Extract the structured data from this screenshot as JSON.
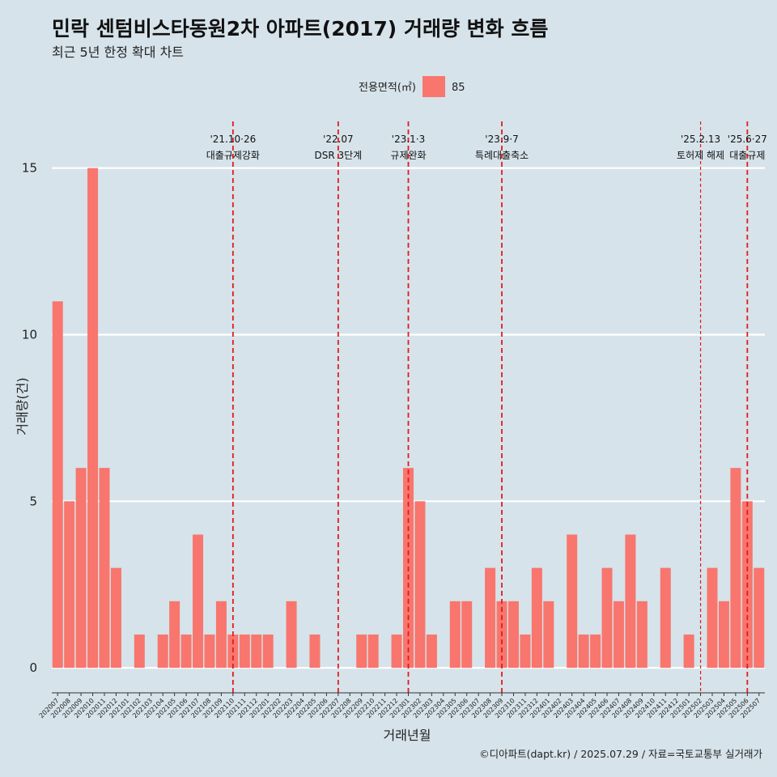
{
  "title": "민락 센텀비스타동원2차 아파트(2017) 거래량 변화 흐름",
  "subtitle": "최근 5년 한정 확대 차트",
  "caption": "©디아파트(dapt.kr) / 2025.07.29 / 자료=국토교통부 실거래가",
  "colors": {
    "background": "#d6e3ea",
    "bar": "#f8766d",
    "event_line": "#e41a1c",
    "grid": "#ffffff"
  },
  "chart_data": {
    "type": "bar",
    "xlabel": "거래년월",
    "ylabel": "거래량(건)",
    "legend": {
      "title": "전용면적(㎡)",
      "position": "top",
      "entries": [
        "85"
      ]
    },
    "ylim": [
      -0.75,
      16.4
    ],
    "yticks": [
      0,
      5,
      10,
      15
    ],
    "grid": true,
    "categories": [
      "202007",
      "202008",
      "202009",
      "202010",
      "202011",
      "202012",
      "202101",
      "202102",
      "202103",
      "202104",
      "202105",
      "202106",
      "202107",
      "202108",
      "202109",
      "202110",
      "202111",
      "202112",
      "202201",
      "202202",
      "202203",
      "202204",
      "202205",
      "202206",
      "202207",
      "202208",
      "202209",
      "202210",
      "202211",
      "202212",
      "202301",
      "202302",
      "202303",
      "202304",
      "202305",
      "202306",
      "202307",
      "202308",
      "202309",
      "202310",
      "202311",
      "202312",
      "202401",
      "202402",
      "202403",
      "202404",
      "202405",
      "202406",
      "202407",
      "202408",
      "202409",
      "202410",
      "202411",
      "202412",
      "202501",
      "202502",
      "202503",
      "202504",
      "202505",
      "202506",
      "202507"
    ],
    "series": [
      {
        "name": "85",
        "values": [
          11,
          5,
          6,
          15,
          6,
          3,
          0,
          1,
          0,
          1,
          2,
          1,
          4,
          1,
          2,
          1,
          1,
          1,
          1,
          0,
          2,
          0,
          1,
          0,
          0,
          0,
          1,
          1,
          0,
          1,
          6,
          5,
          1,
          0,
          2,
          2,
          0,
          3,
          2,
          2,
          1,
          3,
          2,
          0,
          4,
          1,
          1,
          3,
          2,
          4,
          2,
          0,
          3,
          0,
          1,
          0,
          3,
          2,
          6,
          5,
          3
        ]
      }
    ],
    "events": [
      {
        "date": "'21.10·26",
        "label": "대출규제강화",
        "at": "202110",
        "offset": 0.0,
        "style": "dashed"
      },
      {
        "date": "'22.07",
        "label": "DSR 3단계",
        "at": "202207",
        "offset": 0.0,
        "style": "dashed"
      },
      {
        "date": "'23.1·3",
        "label": "규제완화",
        "at": "202301",
        "offset": 0.0,
        "style": "dashed"
      },
      {
        "date": "'23.9·7",
        "label": "특례대출축소",
        "at": "202309",
        "offset": 0.0,
        "style": "dashed"
      },
      {
        "date": "'25.2.13",
        "label": "토허제 해제",
        "at": "202502",
        "offset": 0.0,
        "style": "thin-dashed"
      },
      {
        "date": "'25.6·27",
        "label": "대출규제",
        "at": "202506",
        "offset": 0.0,
        "style": "dashed"
      }
    ]
  }
}
